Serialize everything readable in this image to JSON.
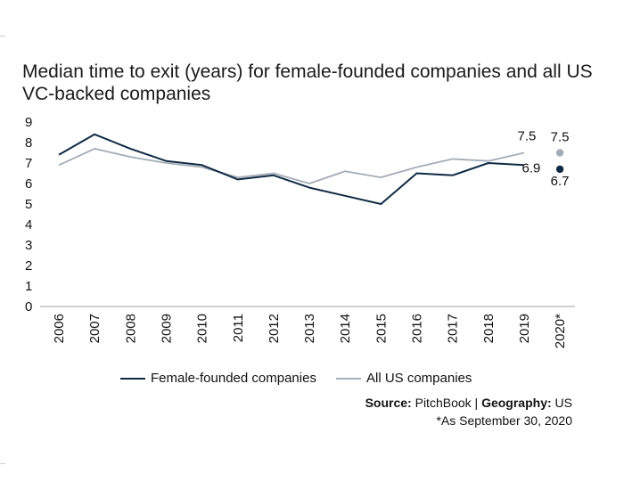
{
  "chart_data": {
    "type": "line",
    "title": "Median time to exit (years) for female-founded companies and all US VC-backed companies",
    "categories": [
      "2006",
      "2007",
      "2008",
      "2009",
      "2010",
      "2011",
      "2012",
      "2013",
      "2014",
      "2015",
      "2016",
      "2017",
      "2018",
      "2019",
      "2020*"
    ],
    "series": [
      {
        "name": "Female-founded companies",
        "color": "#0f2a44",
        "values": [
          7.4,
          8.4,
          7.7,
          7.1,
          6.9,
          6.2,
          6.4,
          5.8,
          5.4,
          5.0,
          6.5,
          6.4,
          7.0,
          6.9,
          6.7
        ]
      },
      {
        "name": "All US companies",
        "color": "#a3adb8",
        "values": [
          6.9,
          7.7,
          7.3,
          7.0,
          6.8,
          6.3,
          6.5,
          6.0,
          6.6,
          6.3,
          6.8,
          7.2,
          7.1,
          7.5,
          7.5
        ]
      }
    ],
    "ylim": [
      0,
      9
    ],
    "yticks": [
      "0",
      "1",
      "2",
      "3",
      "4",
      "5",
      "6",
      "7",
      "8",
      "9"
    ],
    "annotations": [
      {
        "label": "7.5",
        "category": "2019",
        "series": 1
      },
      {
        "label": "6.9",
        "category": "2019",
        "series": 0
      },
      {
        "label": "7.5",
        "category": "2020*",
        "series": 1
      },
      {
        "label": "6.7",
        "category": "2020*",
        "series": 0
      }
    ],
    "legend_position": "bottom",
    "grid": false
  },
  "source": {
    "label": "Source:",
    "value": "PitchBook",
    "separator": "|",
    "geo_label": "Geography:",
    "geo_value": "US",
    "note": "*As September 30, 2020"
  }
}
